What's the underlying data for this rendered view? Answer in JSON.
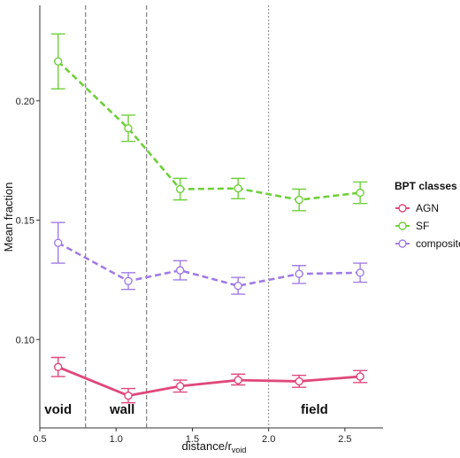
{
  "chart_data": {
    "type": "line",
    "xlabel": "distance/r",
    "xlabel_subscript": "void",
    "ylabel": "Mean fraction",
    "xlim": [
      0.5,
      2.75
    ],
    "ylim": [
      0.063,
      0.24
    ],
    "x_ticks": [
      0.5,
      1.0,
      1.5,
      2.0,
      2.5
    ],
    "x_tick_labels": [
      "0.5",
      "1.0",
      "1.5",
      "2.0",
      "2.5"
    ],
    "y_ticks": [
      0.1,
      0.15,
      0.2
    ],
    "y_tick_labels": [
      "0.10",
      "0.15",
      "0.20"
    ],
    "grid": false,
    "legend": {
      "title": "BPT classes",
      "placement": "right",
      "entries": [
        "AGN",
        "SF",
        "composite"
      ]
    },
    "vlines": [
      {
        "x": 0.8,
        "style": "dashed"
      },
      {
        "x": 1.2,
        "style": "dashed"
      },
      {
        "x": 2.0,
        "style": "dotted"
      }
    ],
    "region_labels": [
      {
        "text": "void",
        "x": 0.62
      },
      {
        "text": "wall",
        "x": 1.04
      },
      {
        "text": "field",
        "x": 2.3
      }
    ],
    "x": [
      0.62,
      1.08,
      1.42,
      1.8,
      2.2,
      2.6
    ],
    "series": [
      {
        "name": "SF",
        "color": "#6fcf3a",
        "style": "dashed",
        "values": [
          0.2165,
          0.1885,
          0.163,
          0.1633,
          0.1585,
          0.1615
        ],
        "err_low": [
          0.205,
          0.183,
          0.1585,
          0.159,
          0.154,
          0.157
        ],
        "err_high": [
          0.228,
          0.194,
          0.1675,
          0.1675,
          0.163,
          0.166
        ]
      },
      {
        "name": "composite",
        "color": "#a17ce6",
        "style": "dashed",
        "values": [
          0.1405,
          0.1245,
          0.129,
          0.1225,
          0.1275,
          0.128
        ],
        "err_low": [
          0.132,
          0.121,
          0.125,
          0.119,
          0.1235,
          0.124
        ],
        "err_high": [
          0.149,
          0.128,
          0.133,
          0.126,
          0.131,
          0.132
        ]
      },
      {
        "name": "AGN",
        "color": "#e0487a",
        "style": "solid",
        "values": [
          0.0885,
          0.0765,
          0.0805,
          0.083,
          0.0825,
          0.0845
        ],
        "err_low": [
          0.0845,
          0.0735,
          0.078,
          0.081,
          0.08,
          0.082
        ],
        "err_high": [
          0.0925,
          0.0795,
          0.083,
          0.0855,
          0.085,
          0.087
        ]
      }
    ]
  }
}
